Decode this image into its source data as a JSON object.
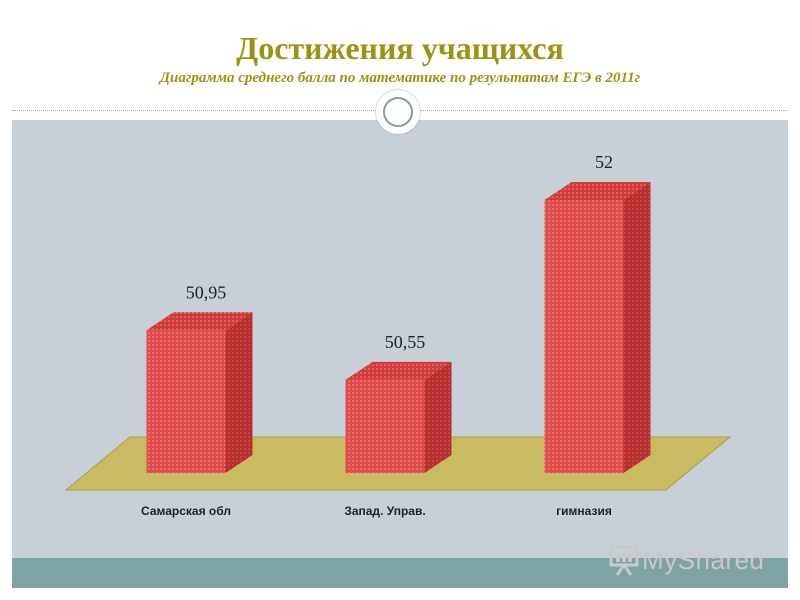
{
  "slide": {
    "title": "Достижения учащихся",
    "subtitle": "Диаграмма среднего балла по математике по результатам ЕГЭ в 2011г"
  },
  "watermark": {
    "text": "MyShared",
    "icon": "presentation-board-icon"
  },
  "colors": {
    "title": "#9a9410",
    "bar_front": "#e24b4b",
    "bar_side": "#b82e2e",
    "bar_top": "#d43a3a",
    "floor": "#c9bb62",
    "background_panel": "#c6d0d6",
    "footer_band": "#7fa2a2"
  },
  "chart_data": {
    "type": "bar",
    "title": "",
    "xlabel": "",
    "ylabel": "",
    "three_d": true,
    "grid": false,
    "legend": "none",
    "categories": [
      "Самарская обл",
      "Запад. Управ.",
      "гимназия"
    ],
    "values": [
      50.95,
      50.55,
      52
    ],
    "data_labels": [
      "50,95",
      "50,55",
      "52"
    ],
    "ylim": [
      49.8,
      52.1
    ]
  }
}
